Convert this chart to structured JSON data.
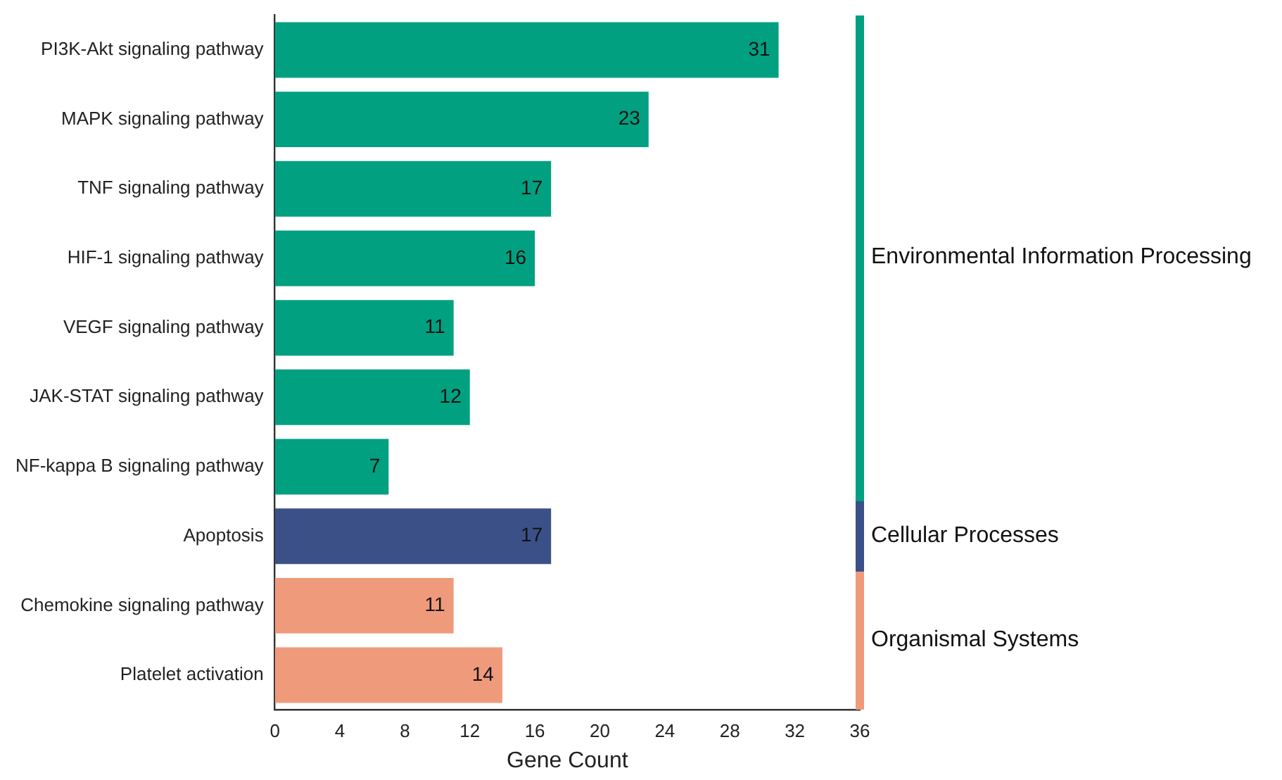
{
  "chart_data": {
    "type": "bar",
    "orientation": "horizontal",
    "stacked": true,
    "xlabel": "Gene Count",
    "categories": [
      "PI3K-Akt signaling pathway",
      "MAPK signaling pathway",
      "TNF signaling pathway",
      "HIF-1 signaling pathway",
      "VEGF signaling pathway",
      "JAK-STAT signaling pathway",
      "NF-kappa B signaling pathway",
      "Apoptosis",
      "Chemokine signaling pathway",
      "Platelet activation"
    ],
    "series": [
      {
        "name": "Environmental Information Processing",
        "color": "#00a080",
        "values": [
          31,
          23,
          17,
          16,
          11,
          12,
          7,
          null,
          null,
          null
        ]
      },
      {
        "name": "Cellular Processes",
        "color": "#3c5088",
        "values": [
          null,
          null,
          null,
          null,
          null,
          null,
          null,
          17,
          null,
          null
        ]
      },
      {
        "name": "Organismal Systems",
        "color": "#f09a7c",
        "values": [
          null,
          null,
          null,
          null,
          null,
          null,
          null,
          null,
          11,
          14
        ]
      }
    ],
    "xlim": [
      0,
      36
    ],
    "xticks": [
      0,
      4,
      8,
      12,
      16,
      20,
      24,
      28,
      32,
      36
    ],
    "data_labels": true,
    "grid": false,
    "legend": "right"
  }
}
